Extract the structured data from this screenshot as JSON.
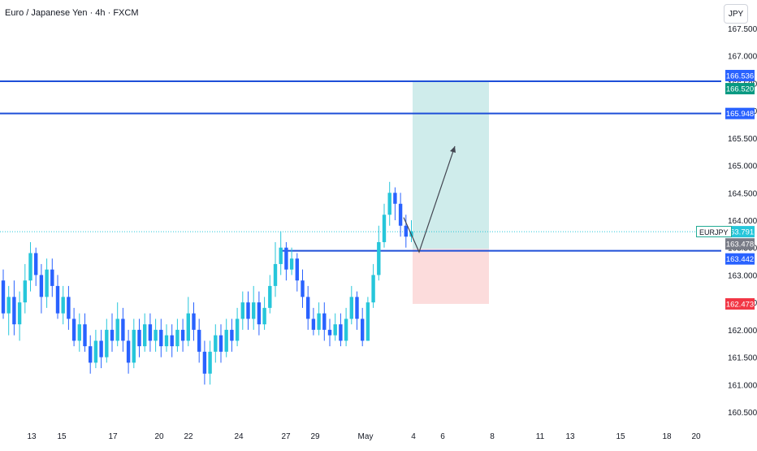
{
  "header": {
    "title": "Euro / Japanese Yen · 4h · FXCM",
    "currency": "JPY"
  },
  "colors": {
    "up": "#26c6da",
    "down": "#2962ff",
    "line": "#1e4fd8",
    "target_zone": "#cfeceb",
    "stop_zone": "#fcdcdc",
    "label_blue": "#2962ff",
    "label_green": "#089981",
    "label_red": "#f23645",
    "label_gray": "#787b86",
    "label_teal": "#26c6da",
    "axis_text": "#131722"
  },
  "chart_data": {
    "type": "candlestick",
    "symbol": "EURJPY",
    "current_price": "163.791",
    "y_axis": {
      "ticks": [
        "160.500",
        "161.000",
        "161.500",
        "162.000",
        "162.500",
        "163.000",
        "163.500",
        "164.000",
        "164.500",
        "165.000",
        "165.500",
        "166.000",
        "166.500",
        "167.000",
        "167.500"
      ],
      "range": [
        160.45,
        167.65
      ]
    },
    "x_axis": {
      "ticks": [
        "13",
        "15",
        "17",
        "20",
        "22",
        "24",
        "27",
        "29",
        "May",
        "4",
        "6",
        "8",
        "11",
        "13",
        "15",
        "18",
        "20"
      ]
    },
    "price_labels": [
      {
        "value": "166.536",
        "kind": "blue"
      },
      {
        "value": "166.520",
        "kind": "green"
      },
      {
        "value": "165.948",
        "kind": "blue"
      },
      {
        "value": "163.791",
        "kind": "teal"
      },
      {
        "value": "163.478",
        "kind": "gray"
      },
      {
        "value": "163.442",
        "kind": "blue"
      },
      {
        "value": "162.473",
        "kind": "red"
      }
    ],
    "horizontal_lines": [
      166.536,
      165.948,
      163.442
    ],
    "position": {
      "entry": 163.478,
      "target": 166.52,
      "stop": 162.473
    },
    "candles": [
      [
        162.9,
        162.3,
        163.1,
        162.2
      ],
      [
        162.3,
        162.6,
        162.8,
        161.9
      ],
      [
        162.6,
        162.1,
        162.9,
        161.9
      ],
      [
        162.1,
        162.5,
        162.7,
        161.8
      ],
      [
        162.5,
        162.9,
        163.2,
        162.3
      ],
      [
        162.9,
        163.4,
        163.6,
        162.7
      ],
      [
        163.4,
        163.0,
        163.5,
        162.8
      ],
      [
        163.0,
        162.6,
        163.2,
        162.3
      ],
      [
        162.6,
        163.1,
        163.3,
        162.4
      ],
      [
        163.1,
        162.8,
        163.3,
        162.6
      ],
      [
        162.8,
        162.3,
        163.0,
        162.2
      ],
      [
        162.3,
        162.6,
        162.8,
        162.1
      ],
      [
        162.6,
        162.2,
        162.8,
        162.0
      ],
      [
        162.2,
        161.8,
        162.4,
        161.7
      ],
      [
        161.8,
        162.1,
        162.3,
        161.6
      ],
      [
        162.1,
        161.7,
        162.3,
        161.6
      ],
      [
        161.7,
        161.4,
        161.9,
        161.2
      ],
      [
        161.4,
        161.8,
        162.0,
        161.3
      ],
      [
        161.8,
        161.5,
        162.0,
        161.3
      ],
      [
        161.5,
        162.0,
        162.2,
        161.4
      ],
      [
        162.0,
        161.8,
        162.3,
        161.6
      ],
      [
        161.8,
        162.2,
        162.5,
        161.7
      ],
      [
        162.2,
        161.8,
        162.4,
        161.6
      ],
      [
        161.8,
        161.4,
        162.0,
        161.2
      ],
      [
        161.4,
        162.0,
        162.2,
        161.3
      ],
      [
        162.0,
        161.7,
        162.2,
        161.5
      ],
      [
        161.7,
        162.1,
        162.3,
        161.6
      ],
      [
        162.1,
        161.8,
        162.3,
        161.6
      ],
      [
        161.8,
        162.0,
        162.2,
        161.6
      ],
      [
        162.0,
        161.7,
        162.2,
        161.5
      ],
      [
        161.7,
        161.9,
        162.1,
        161.6
      ],
      [
        161.9,
        161.7,
        162.1,
        161.5
      ],
      [
        161.7,
        162.0,
        162.2,
        161.6
      ],
      [
        162.0,
        161.8,
        162.2,
        161.6
      ],
      [
        161.8,
        162.3,
        162.6,
        161.7
      ],
      [
        162.3,
        162.0,
        162.5,
        161.8
      ],
      [
        162.0,
        161.6,
        162.2,
        161.4
      ],
      [
        161.6,
        161.2,
        161.8,
        161.0
      ],
      [
        161.2,
        161.6,
        161.8,
        161.0
      ],
      [
        161.6,
        161.9,
        162.1,
        161.4
      ],
      [
        161.9,
        161.6,
        162.1,
        161.4
      ],
      [
        161.6,
        162.0,
        162.2,
        161.5
      ],
      [
        162.0,
        161.8,
        162.2,
        161.6
      ],
      [
        161.8,
        162.2,
        162.4,
        161.7
      ],
      [
        162.2,
        162.5,
        162.7,
        162.0
      ],
      [
        162.5,
        162.2,
        162.7,
        162.0
      ],
      [
        162.2,
        162.5,
        162.8,
        162.0
      ],
      [
        162.5,
        162.1,
        162.7,
        161.9
      ],
      [
        162.1,
        162.4,
        162.6,
        162.0
      ],
      [
        162.4,
        162.8,
        163.0,
        162.3
      ],
      [
        162.8,
        163.2,
        163.6,
        162.6
      ],
      [
        163.2,
        163.5,
        163.8,
        163.0
      ],
      [
        163.5,
        163.1,
        163.6,
        162.9
      ],
      [
        163.1,
        163.3,
        163.5,
        163.0
      ],
      [
        163.3,
        162.9,
        163.4,
        162.7
      ],
      [
        162.9,
        162.6,
        163.1,
        162.4
      ],
      [
        162.6,
        162.2,
        162.8,
        162.0
      ],
      [
        162.2,
        162.0,
        162.4,
        161.9
      ],
      [
        162.0,
        162.3,
        162.5,
        161.9
      ],
      [
        162.3,
        162.0,
        162.5,
        161.8
      ],
      [
        162.0,
        161.9,
        162.2,
        161.7
      ],
      [
        161.9,
        162.1,
        162.3,
        161.8
      ],
      [
        162.1,
        161.8,
        162.3,
        161.7
      ],
      [
        161.8,
        162.2,
        162.4,
        161.7
      ],
      [
        162.2,
        162.6,
        162.8,
        162.1
      ],
      [
        162.6,
        162.2,
        162.7,
        162.0
      ],
      [
        162.2,
        161.8,
        162.4,
        161.7
      ],
      [
        161.8,
        162.5,
        162.6,
        161.8
      ],
      [
        162.5,
        163.0,
        163.2,
        162.4
      ],
      [
        163.0,
        163.6,
        163.9,
        162.9
      ],
      [
        163.6,
        164.1,
        164.3,
        163.5
      ],
      [
        164.1,
        164.5,
        164.7,
        163.9
      ],
      [
        164.5,
        164.3,
        164.6,
        164.0
      ],
      [
        164.3,
        163.9,
        164.5,
        163.7
      ],
      [
        163.9,
        163.7,
        164.1,
        163.5
      ],
      [
        163.7,
        163.8,
        164.0,
        163.6
      ]
    ]
  }
}
